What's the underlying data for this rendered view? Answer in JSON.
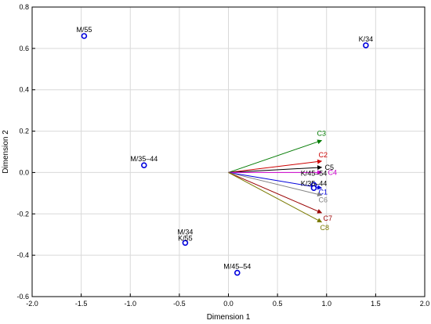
{
  "chart_data": {
    "type": "scatter",
    "xlabel": "Dimension   1",
    "ylabel": "Dimension   2",
    "xlim": [
      -2.0,
      2.0
    ],
    "ylim": [
      -0.6,
      0.8
    ],
    "x_ticks": [
      -2.0,
      -1.5,
      -1.0,
      -0.5,
      0.0,
      0.5,
      1.0,
      1.5,
      2.0
    ],
    "y_ticks": [
      -0.6,
      -0.4,
      -0.2,
      0.0,
      0.2,
      0.4,
      0.6,
      0.8
    ],
    "x_tick_labels": [
      "-2.0",
      "-1.5",
      "-1.0",
      "-0.5",
      "0.0",
      "0.5",
      "1.0",
      "1.5",
      "2.0"
    ],
    "y_tick_labels": [
      "-0.6",
      "-0.4",
      "-0.2",
      "0.0",
      "0.2",
      "0.4",
      "0.6",
      "0.8"
    ],
    "grid": true,
    "points": [
      {
        "label": "M/55",
        "x": -1.47,
        "y": 0.66
      },
      {
        "label": "K/34",
        "x": 1.4,
        "y": 0.615
      },
      {
        "label": "M/35–44",
        "x": -0.86,
        "y": 0.035
      },
      {
        "label": "M/34",
        "x": -0.44,
        "y": -0.34
      },
      {
        "label": "K/55",
        "x": -0.44,
        "y": -0.34
      },
      {
        "label": "M/45–54",
        "x": 0.09,
        "y": -0.485
      },
      {
        "label": "K/45–54",
        "x": 0.87,
        "y": -0.06
      },
      {
        "label": "K/35–44",
        "x": 0.87,
        "y": -0.075
      }
    ],
    "vectors": [
      {
        "name": "C3",
        "x": 0.95,
        "y": 0.155,
        "color": "#007a00"
      },
      {
        "name": "C2",
        "x": 0.95,
        "y": 0.055,
        "color": "#cc0000"
      },
      {
        "name": "C5",
        "x": 0.95,
        "y": 0.025,
        "color": "#000000"
      },
      {
        "name": "C4",
        "x": 0.95,
        "y": 0.0,
        "color": "#cc00cc"
      },
      {
        "name": "C1",
        "x": 0.95,
        "y": -0.075,
        "color": "#0000dd"
      },
      {
        "name": "C6",
        "x": 0.95,
        "y": -0.11,
        "color": "#808080"
      },
      {
        "name": "C7",
        "x": 0.95,
        "y": -0.195,
        "color": "#990000"
      },
      {
        "name": "C8",
        "x": 0.95,
        "y": -0.24,
        "color": "#7a7a00"
      }
    ]
  },
  "colors": {
    "point_marker": "#0000dd",
    "grid": "#d9d9d9",
    "axis": "#000000"
  }
}
